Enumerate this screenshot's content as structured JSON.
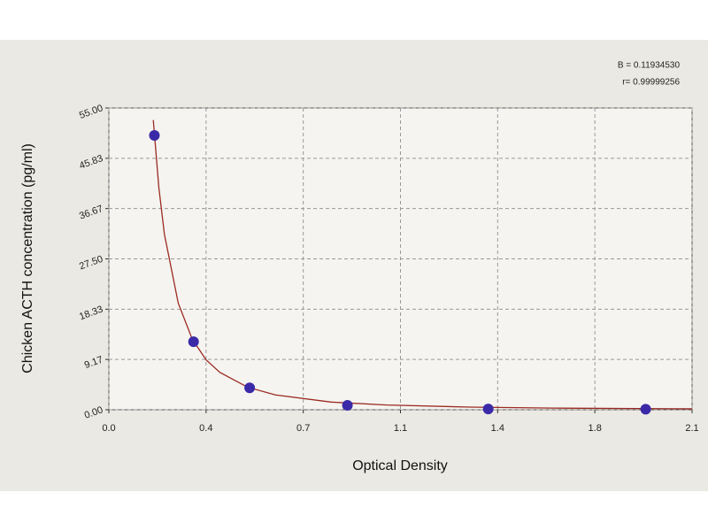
{
  "chart_data": {
    "type": "scatter",
    "xlabel": "Optical Density",
    "ylabel": "Chicken ACTH concentration (pg/ml)",
    "annotations": [
      "B = 0.11934530",
      "r= 0.99999256"
    ],
    "xlim": [
      0,
      2.1
    ],
    "ylim": [
      0,
      55
    ],
    "xticks": [
      {
        "value": 0,
        "label": "0.0"
      },
      {
        "value": 0.35,
        "label": "0.4"
      },
      {
        "value": 0.7,
        "label": "0.7"
      },
      {
        "value": 1.05,
        "label": "1.1"
      },
      {
        "value": 1.4,
        "label": "1.4"
      },
      {
        "value": 1.75,
        "label": "1.8"
      },
      {
        "value": 2.1,
        "label": "2.1"
      }
    ],
    "yticks": [
      {
        "value": 0,
        "label": "0.00"
      },
      9.17,
      18.33,
      {
        "value": 27.5,
        "label": "27.50"
      },
      36.67,
      45.83,
      {
        "value": 55,
        "label": "55.00"
      }
    ],
    "grid": true,
    "series": [
      {
        "type": "line",
        "color": "#9b2a22",
        "x": [
          0.16,
          0.18,
          0.2,
          0.25,
          0.3,
          0.35,
          0.4,
          0.5,
          0.6,
          0.8,
          1.0,
          1.3,
          1.6,
          2.1
        ],
        "values": [
          52.8,
          40.5,
          32.0,
          19.4,
          12.9,
          9.1,
          6.8,
          4.1,
          2.7,
          1.4,
          0.87,
          0.48,
          0.3,
          0.17
        ]
      },
      {
        "type": "scatter",
        "color": "#3b2aa8",
        "x": [
          0.164,
          0.305,
          0.507,
          0.859,
          1.366,
          1.933
        ],
        "values": [
          50.0,
          12.4,
          4.0,
          0.8,
          0.15,
          0.1
        ]
      }
    ]
  }
}
